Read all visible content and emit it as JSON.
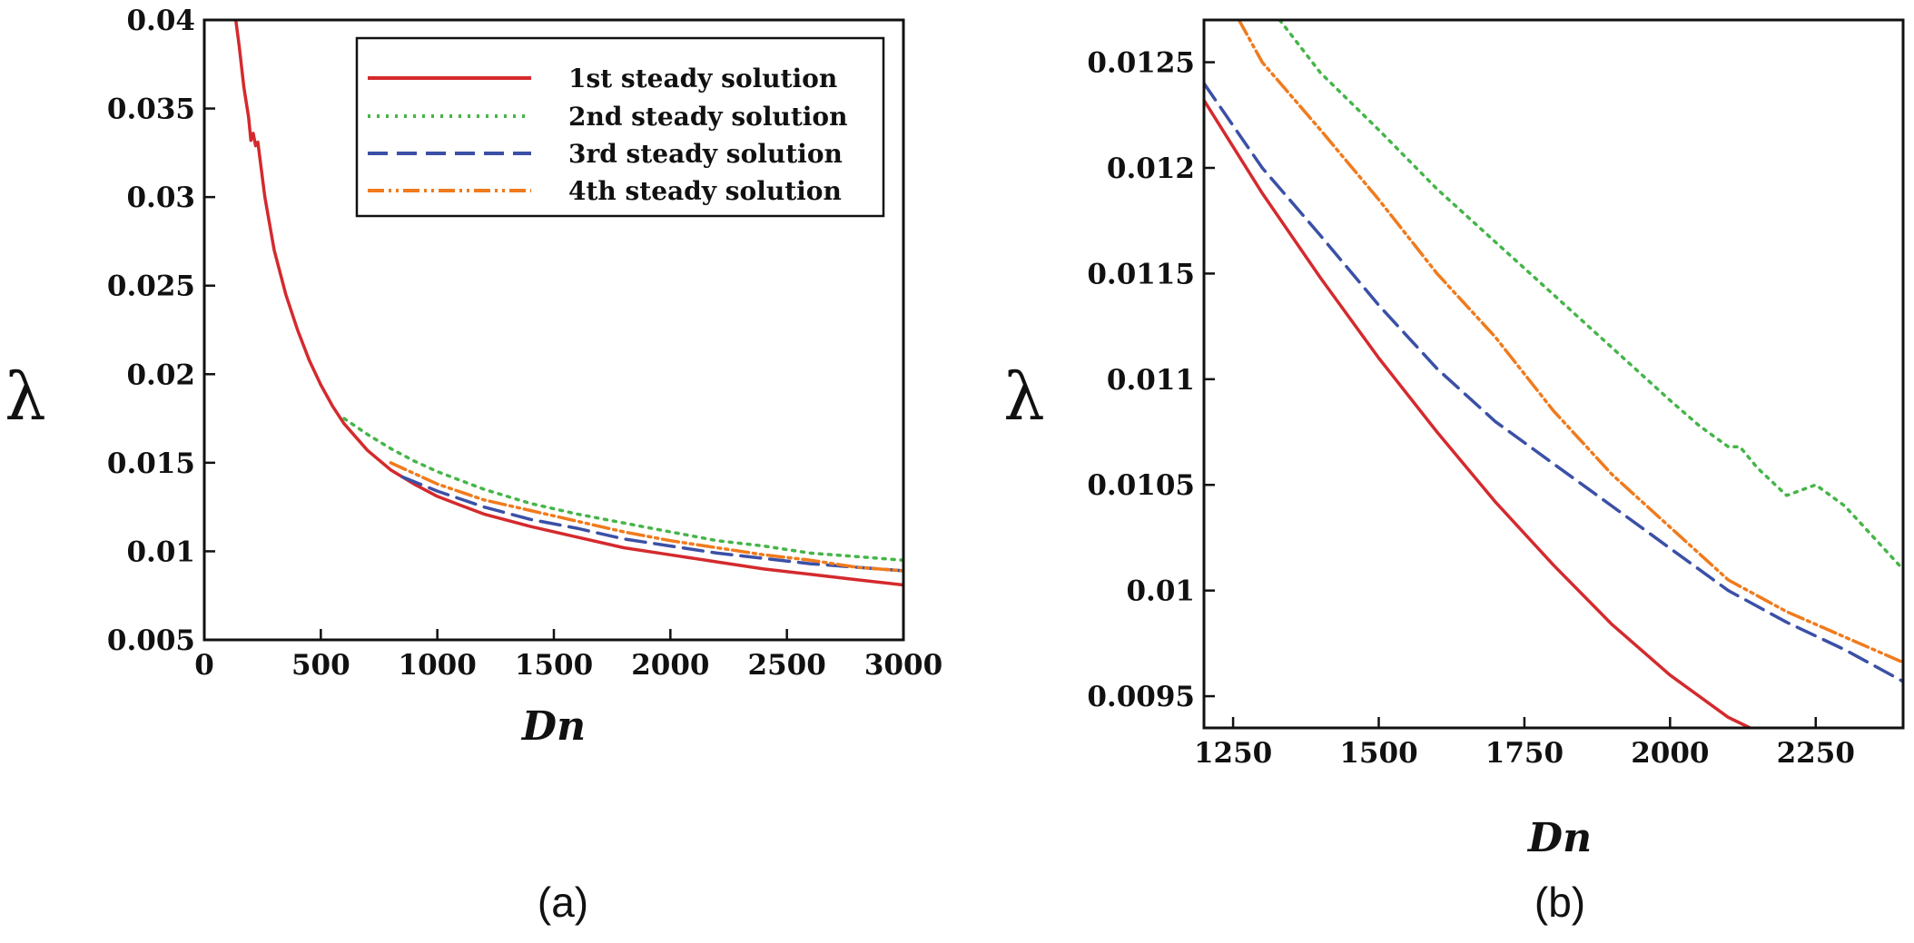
{
  "colors": {
    "s1": "#d42a2e",
    "s2": "#46b549",
    "s3": "#3b50a6",
    "s4": "#f07b1d"
  },
  "chart_data": [
    {
      "panel_label": "(a)",
      "type": "line",
      "xlabel": "Dn",
      "ylabel": "λ",
      "xlim": [
        0,
        3000
      ],
      "ylim": [
        0.005,
        0.04
      ],
      "xticks": [
        "0",
        "500",
        "1000",
        "1500",
        "2000",
        "2500",
        "3000"
      ],
      "yticks": [
        "0.005",
        "0.01",
        "0.015",
        "0.02",
        "0.025",
        "0.03",
        "0.035",
        "0.04"
      ],
      "legend_position": "top-right",
      "series": [
        {
          "name": "1st steady solution",
          "style": "solid",
          "color": "#d42a2e",
          "x": [
            130,
            150,
            170,
            190,
            200,
            210,
            220,
            230,
            260,
            300,
            350,
            400,
            450,
            500,
            550,
            600,
            700,
            800,
            900,
            1000,
            1100,
            1200,
            1400,
            1600,
            1800,
            2000,
            2200,
            2400,
            2600,
            2800,
            3000
          ],
          "y": [
            0.0405,
            0.0385,
            0.0362,
            0.0345,
            0.0332,
            0.0336,
            0.0329,
            0.0331,
            0.03,
            0.027,
            0.0245,
            0.0225,
            0.0208,
            0.0194,
            0.0182,
            0.0172,
            0.0157,
            0.0146,
            0.0138,
            0.0131,
            0.0126,
            0.0121,
            0.0114,
            0.0108,
            0.0102,
            0.0098,
            0.0094,
            0.009,
            0.0087,
            0.0084,
            0.0081
          ]
        },
        {
          "name": "2nd steady solution",
          "style": "dotted",
          "color": "#46b549",
          "x": [
            600,
            700,
            800,
            900,
            1000,
            1200,
            1400,
            1600,
            1800,
            2000,
            2200,
            2400,
            2600,
            2800,
            3000
          ],
          "y": [
            0.0175,
            0.0166,
            0.0158,
            0.0151,
            0.0145,
            0.0135,
            0.0127,
            0.0121,
            0.0116,
            0.0111,
            0.0106,
            0.0103,
            0.0099,
            0.0097,
            0.0095
          ]
        },
        {
          "name": "3rd steady solution",
          "style": "dashed",
          "color": "#3b50a6",
          "x": [
            850,
            1000,
            1200,
            1400,
            1600,
            1800,
            2000,
            2200,
            2400,
            2600,
            2800,
            3000
          ],
          "y": [
            0.0142,
            0.0134,
            0.0125,
            0.0118,
            0.0113,
            0.0107,
            0.0103,
            0.0099,
            0.0096,
            0.0093,
            0.0091,
            0.0089
          ]
        },
        {
          "name": "4th steady solution",
          "style": "dashdot",
          "color": "#f07b1d",
          "x": [
            800,
            900,
            1000,
            1200,
            1400,
            1600,
            1800,
            2000,
            2200,
            2400,
            2600,
            2800,
            3000
          ],
          "y": [
            0.015,
            0.0144,
            0.0138,
            0.0129,
            0.0123,
            0.0117,
            0.0111,
            0.0106,
            0.0102,
            0.0098,
            0.0095,
            0.0091,
            0.0089
          ]
        }
      ]
    },
    {
      "panel_label": "(b)",
      "type": "line",
      "xlabel": "Dn",
      "ylabel": "λ",
      "xlim": [
        1200,
        2400
      ],
      "ylim": [
        0.00935,
        0.0127
      ],
      "xticks": [
        "1250",
        "1500",
        "1750",
        "2000",
        "2250"
      ],
      "yticks": [
        "0.0095",
        "0.01",
        "0.0105",
        "0.011",
        "0.0115",
        "0.012",
        "0.0125"
      ],
      "series": [
        {
          "name": "1st steady solution",
          "style": "solid",
          "color": "#d42a2e",
          "x": [
            1200,
            1300,
            1400,
            1500,
            1600,
            1700,
            1800,
            1900,
            2000,
            2100,
            2160
          ],
          "y": [
            0.01232,
            0.01188,
            0.01148,
            0.0111,
            0.01075,
            0.01042,
            0.01012,
            0.00984,
            0.0096,
            0.0094,
            0.00932
          ]
        },
        {
          "name": "2nd steady solution",
          "style": "dotted",
          "color": "#46b549",
          "x": [
            1330,
            1400,
            1500,
            1600,
            1700,
            1800,
            1900,
            2000,
            2050,
            2100,
            2120,
            2150,
            2200,
            2250,
            2300,
            2400
          ],
          "y": [
            0.0127,
            0.01245,
            0.01218,
            0.0119,
            0.01165,
            0.0114,
            0.01115,
            0.0109,
            0.01078,
            0.01068,
            0.01068,
            0.01058,
            0.01045,
            0.0105,
            0.0104,
            0.0101
          ]
        },
        {
          "name": "3rd steady solution",
          "style": "dashed",
          "color": "#3b50a6",
          "x": [
            1200,
            1300,
            1400,
            1500,
            1600,
            1700,
            1800,
            1900,
            2000,
            2100,
            2200,
            2300,
            2400
          ],
          "y": [
            0.0124,
            0.012,
            0.01168,
            0.01135,
            0.01105,
            0.0108,
            0.0106,
            0.0104,
            0.0102,
            0.01,
            0.00985,
            0.00972,
            0.00957
          ]
        },
        {
          "name": "4th steady solution",
          "style": "dashdot",
          "color": "#f07b1d",
          "x": [
            1260,
            1300,
            1400,
            1500,
            1600,
            1700,
            1800,
            1900,
            2000,
            2100,
            2200,
            2300,
            2400
          ],
          "y": [
            0.0127,
            0.0125,
            0.01218,
            0.01185,
            0.0115,
            0.0112,
            0.01085,
            0.01055,
            0.0103,
            0.01005,
            0.0099,
            0.00978,
            0.00966
          ]
        }
      ]
    }
  ]
}
